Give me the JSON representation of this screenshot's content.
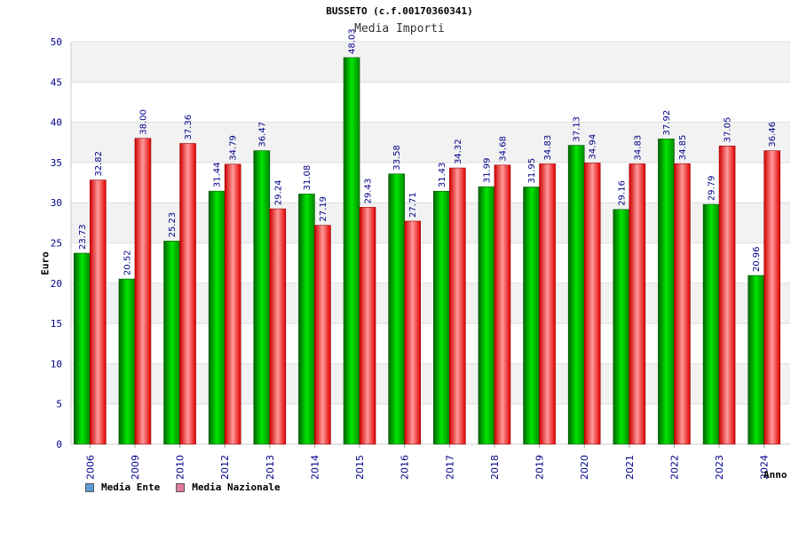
{
  "header": {
    "title": "BUSSETO (c.f.00170360341)",
    "subtitle": "Media Importi"
  },
  "legend": {
    "ente_label": "Media Ente",
    "nazionale_label": "Media Nazionale",
    "ente_swatch_color": "#5b9bd5",
    "nazionale_swatch_color": "#e07ba0"
  },
  "colors": {
    "ente": "#00b000",
    "nazionale": "#ff3030",
    "axis_text": "#00008b",
    "value_text": "#00008b",
    "band": "#f2f2f2"
  },
  "chart_data": {
    "type": "bar",
    "title": "Media Importi",
    "xlabel": "Anno",
    "ylabel": "Euro",
    "ylim": [
      0,
      50
    ],
    "yticks": [
      0,
      5,
      10,
      15,
      20,
      25,
      30,
      35,
      40,
      45,
      50
    ],
    "grid": true,
    "legend_position": "bottom-left",
    "categories": [
      "2006",
      "2009",
      "2010",
      "2012",
      "2013",
      "2014",
      "2015",
      "2016",
      "2017",
      "2018",
      "2019",
      "2020",
      "2021",
      "2022",
      "2023",
      "2024"
    ],
    "series": [
      {
        "name": "Media Ente",
        "values": [
          23.73,
          20.52,
          25.23,
          31.44,
          36.47,
          31.08,
          48.03,
          33.58,
          31.43,
          31.99,
          31.95,
          37.13,
          29.16,
          37.92,
          29.79,
          20.96
        ]
      },
      {
        "name": "Media Nazionale",
        "values": [
          32.82,
          38.0,
          37.36,
          34.79,
          29.24,
          27.19,
          29.43,
          27.71,
          34.32,
          34.68,
          34.83,
          34.94,
          34.83,
          34.85,
          37.05,
          36.46
        ]
      }
    ]
  }
}
